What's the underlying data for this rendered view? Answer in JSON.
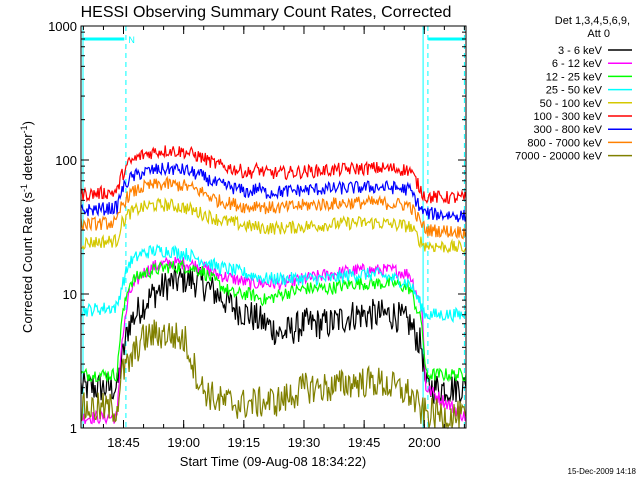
{
  "chart_data": {
    "type": "line",
    "title": "HESSI Observing Summary Count Rates, Corrected",
    "xlabel": "Start Time (09-Aug-08 18:34:22)",
    "ylabel_main": "Corrected Count Rate (s",
    "ylabel_sup1": "-1",
    "ylabel_mid": " detector",
    "ylabel_sup2": "-1",
    "ylabel_end": ")",
    "x_start_minutes": 0,
    "x_end_minutes": 96,
    "y_scale": "log",
    "ylim": [
      1,
      1000
    ],
    "x_ticks": [
      {
        "minute": 10.6,
        "label": "18:45"
      },
      {
        "minute": 25.6,
        "label": "19:00"
      },
      {
        "minute": 40.6,
        "label": "19:15"
      },
      {
        "minute": 55.6,
        "label": "19:30"
      },
      {
        "minute": 70.6,
        "label": "19:45"
      },
      {
        "minute": 85.6,
        "label": "20:00"
      }
    ],
    "y_ticks": [
      {
        "value": 1,
        "label": "1"
      },
      {
        "value": 10,
        "label": "10"
      },
      {
        "value": 100,
        "label": "100"
      },
      {
        "value": 1000,
        "label": "1000"
      }
    ],
    "legend_header_1": "Det 1,3,4,5,6,9,",
    "legend_header_2": "Att 0",
    "legend_placement": "right",
    "series": [
      {
        "name": "3 - 6 keV",
        "color": "#000000",
        "points": [
          [
            0,
            2
          ],
          [
            9,
            2
          ],
          [
            10,
            3
          ],
          [
            12,
            6
          ],
          [
            15,
            8
          ],
          [
            18,
            10
          ],
          [
            22,
            12
          ],
          [
            26,
            13
          ],
          [
            30,
            12
          ],
          [
            34,
            10
          ],
          [
            38,
            8
          ],
          [
            42,
            7
          ],
          [
            46,
            6
          ],
          [
            50,
            5
          ],
          [
            56,
            6
          ],
          [
            62,
            6
          ],
          [
            68,
            7
          ],
          [
            74,
            7
          ],
          [
            78,
            7
          ],
          [
            82,
            6
          ],
          [
            85,
            4
          ],
          [
            86,
            2
          ],
          [
            96,
            2
          ]
        ]
      },
      {
        "name": "6 - 12 keV",
        "color": "#ff00ff",
        "points": [
          [
            0,
            1.2
          ],
          [
            9,
            1.2
          ],
          [
            10,
            4
          ],
          [
            12,
            10
          ],
          [
            15,
            14
          ],
          [
            18,
            16
          ],
          [
            22,
            17
          ],
          [
            26,
            17
          ],
          [
            30,
            16
          ],
          [
            34,
            14
          ],
          [
            38,
            13
          ],
          [
            42,
            12
          ],
          [
            46,
            12
          ],
          [
            50,
            12
          ],
          [
            56,
            13
          ],
          [
            62,
            14
          ],
          [
            68,
            15
          ],
          [
            74,
            15
          ],
          [
            78,
            15
          ],
          [
            82,
            14
          ],
          [
            85,
            8
          ],
          [
            86,
            2
          ],
          [
            96,
            1.2
          ]
        ]
      },
      {
        "name": "12 - 25 keV",
        "color": "#00ff00",
        "points": [
          [
            0,
            2.5
          ],
          [
            9,
            2.5
          ],
          [
            10,
            6
          ],
          [
            12,
            12
          ],
          [
            15,
            14
          ],
          [
            18,
            15
          ],
          [
            22,
            16
          ],
          [
            26,
            16
          ],
          [
            30,
            15
          ],
          [
            34,
            12
          ],
          [
            38,
            10
          ],
          [
            42,
            10
          ],
          [
            46,
            9
          ],
          [
            50,
            10
          ],
          [
            56,
            11
          ],
          [
            62,
            11
          ],
          [
            68,
            12
          ],
          [
            74,
            12
          ],
          [
            78,
            12
          ],
          [
            82,
            11
          ],
          [
            85,
            6
          ],
          [
            86,
            2.5
          ],
          [
            96,
            2.5
          ]
        ]
      },
      {
        "name": "25 - 50 keV",
        "color": "#00ffff",
        "points": [
          [
            0,
            7.5
          ],
          [
            9,
            8
          ],
          [
            10,
            11
          ],
          [
            12,
            17
          ],
          [
            15,
            20
          ],
          [
            18,
            21
          ],
          [
            22,
            21
          ],
          [
            26,
            20
          ],
          [
            30,
            18
          ],
          [
            34,
            16
          ],
          [
            38,
            15
          ],
          [
            42,
            14
          ],
          [
            46,
            13
          ],
          [
            50,
            13
          ],
          [
            56,
            13
          ],
          [
            62,
            13
          ],
          [
            68,
            14
          ],
          [
            74,
            14
          ],
          [
            78,
            13
          ],
          [
            82,
            12
          ],
          [
            85,
            8
          ],
          [
            86,
            7
          ],
          [
            96,
            7
          ]
        ]
      },
      {
        "name": "50 - 100 keV",
        "color": "#d4c800",
        "points": [
          [
            0,
            24
          ],
          [
            9,
            25
          ],
          [
            10,
            33
          ],
          [
            12,
            40
          ],
          [
            15,
            44
          ],
          [
            18,
            46
          ],
          [
            22,
            46
          ],
          [
            26,
            44
          ],
          [
            30,
            40
          ],
          [
            34,
            36
          ],
          [
            38,
            34
          ],
          [
            42,
            32
          ],
          [
            46,
            31
          ],
          [
            50,
            31
          ],
          [
            56,
            32
          ],
          [
            62,
            33
          ],
          [
            68,
            34
          ],
          [
            74,
            34
          ],
          [
            78,
            33
          ],
          [
            82,
            32
          ],
          [
            85,
            24
          ],
          [
            86,
            23
          ],
          [
            96,
            22
          ]
        ]
      },
      {
        "name": "100 - 300 keV",
        "color": "#ff0000",
        "points": [
          [
            0,
            55
          ],
          [
            9,
            58
          ],
          [
            10,
            75
          ],
          [
            12,
            95
          ],
          [
            15,
            108
          ],
          [
            18,
            115
          ],
          [
            22,
            118
          ],
          [
            26,
            115
          ],
          [
            30,
            105
          ],
          [
            34,
            92
          ],
          [
            38,
            86
          ],
          [
            42,
            80
          ],
          [
            44,
            86
          ],
          [
            46,
            80
          ],
          [
            50,
            80
          ],
          [
            56,
            82
          ],
          [
            62,
            84
          ],
          [
            68,
            86
          ],
          [
            74,
            87
          ],
          [
            78,
            86
          ],
          [
            82,
            84
          ],
          [
            85,
            58
          ],
          [
            86,
            53
          ],
          [
            96,
            52
          ]
        ]
      },
      {
        "name": "300 - 800 keV",
        "color": "#0000ff",
        "points": [
          [
            0,
            42
          ],
          [
            9,
            44
          ],
          [
            10,
            58
          ],
          [
            12,
            72
          ],
          [
            15,
            80
          ],
          [
            18,
            84
          ],
          [
            22,
            86
          ],
          [
            26,
            84
          ],
          [
            30,
            76
          ],
          [
            34,
            66
          ],
          [
            38,
            62
          ],
          [
            42,
            57
          ],
          [
            44,
            62
          ],
          [
            46,
            57
          ],
          [
            50,
            58
          ],
          [
            56,
            60
          ],
          [
            62,
            61
          ],
          [
            68,
            62
          ],
          [
            74,
            63
          ],
          [
            78,
            62
          ],
          [
            82,
            60
          ],
          [
            85,
            42
          ],
          [
            86,
            40
          ],
          [
            96,
            38
          ]
        ]
      },
      {
        "name": "800 - 7000 keV",
        "color": "#ff8000",
        "points": [
          [
            0,
            33
          ],
          [
            9,
            34
          ],
          [
            10,
            45
          ],
          [
            12,
            55
          ],
          [
            15,
            62
          ],
          [
            18,
            65
          ],
          [
            22,
            66
          ],
          [
            26,
            64
          ],
          [
            30,
            58
          ],
          [
            34,
            50
          ],
          [
            38,
            47
          ],
          [
            42,
            44
          ],
          [
            44,
            47
          ],
          [
            46,
            44
          ],
          [
            50,
            44
          ],
          [
            56,
            46
          ],
          [
            62,
            47
          ],
          [
            68,
            48
          ],
          [
            74,
            48
          ],
          [
            78,
            47
          ],
          [
            82,
            46
          ],
          [
            85,
            33
          ],
          [
            86,
            30
          ],
          [
            96,
            29
          ]
        ]
      },
      {
        "name": "7000 - 20000 keV",
        "color": "#808000",
        "points": [
          [
            0,
            1.4
          ],
          [
            9,
            1.4
          ],
          [
            10,
            2.5
          ],
          [
            12,
            3
          ],
          [
            15,
            4.5
          ],
          [
            18,
            5
          ],
          [
            22,
            5
          ],
          [
            26,
            4.5
          ],
          [
            28,
            3
          ],
          [
            30,
            2
          ],
          [
            34,
            1.6
          ],
          [
            40,
            1.5
          ],
          [
            50,
            1.6
          ],
          [
            56,
            2
          ],
          [
            62,
            2
          ],
          [
            68,
            2.2
          ],
          [
            74,
            2.2
          ],
          [
            78,
            2
          ],
          [
            82,
            1.8
          ],
          [
            85,
            1.3
          ],
          [
            96,
            1.2
          ]
        ]
      }
    ],
    "attenuator_flag": "N",
    "bar_color": "#00ffff",
    "vertical_markers_minutes": [
      11.2,
      86.5
    ],
    "solid_markers_minutes": [
      0.5,
      85.3
    ],
    "footer_date": "15-Dec-2009 14:18"
  }
}
